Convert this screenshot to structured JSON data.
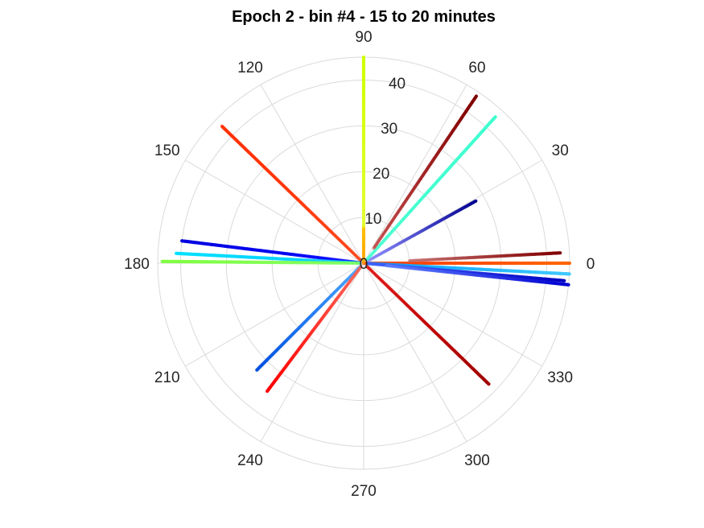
{
  "chart_data": {
    "type": "scatter",
    "coordinate_system": "polar",
    "title": "Epoch 2 - bin #4 - 15 to 20 minutes",
    "theta_unit": "degrees",
    "theta_ticks": [
      0,
      30,
      60,
      90,
      120,
      150,
      180,
      210,
      240,
      270,
      300,
      330
    ],
    "theta_tick_labels": [
      "0",
      "30",
      "60",
      "90",
      "120",
      "150",
      "180",
      "210",
      "240",
      "270",
      "300",
      "330"
    ],
    "r_ticks": [
      0,
      10,
      20,
      30,
      40
    ],
    "r_tick_labels": [
      "0",
      "10",
      "20",
      "30",
      "40"
    ],
    "r_lim": [
      0,
      45
    ],
    "grid": true,
    "colormap": "jet",
    "series": [
      {
        "theta": 0,
        "r": [
          0,
          45
        ],
        "color_start": "#ff3000",
        "color_end": "#ff6600",
        "density": 1.0
      },
      {
        "theta": 3,
        "r": [
          10,
          43
        ],
        "color_start": "#c06060",
        "color_end": "#800000",
        "density": 0.75
      },
      {
        "theta": -3,
        "r": [
          1,
          45
        ],
        "color_start": "#00a0ff",
        "color_end": "#40c8ff",
        "density": 1.0
      },
      {
        "theta": -5,
        "r": [
          1,
          44
        ],
        "color_start": "#4060ff",
        "color_end": "#0000c0",
        "density": 1.0
      },
      {
        "theta": -6,
        "r": [
          5,
          45
        ],
        "color_start": "#6080ff",
        "color_end": "#0000d0",
        "density": 0.9
      },
      {
        "theta": 29,
        "r": [
          1,
          28
        ],
        "color_start": "#8080ff",
        "color_end": "#000090",
        "density": 0.7
      },
      {
        "theta": 48,
        "r": [
          1,
          43
        ],
        "color_start": "#40ffd0",
        "color_end": "#40ffd0",
        "density": 0.9
      },
      {
        "theta": 56,
        "r": [
          4,
          44
        ],
        "color_start": "#c04040",
        "color_end": "#800000",
        "density": 0.85
      },
      {
        "theta": 90,
        "r": [
          0,
          8
        ],
        "color_start": "#ffa000",
        "color_end": "#ffc000",
        "density": 1.0
      },
      {
        "theta": 90,
        "r": [
          8,
          45
        ],
        "color_start": "#e0ff20",
        "color_end": "#d0ff00",
        "density": 1.0
      },
      {
        "theta": 136,
        "r": [
          1,
          43
        ],
        "color_start": "#ff3000",
        "color_end": "#ff3000",
        "density": 0.75
      },
      {
        "theta": 173,
        "r": [
          1,
          40
        ],
        "color_start": "#0000ff",
        "color_end": "#0000e0",
        "density": 0.9
      },
      {
        "theta": 177,
        "r": [
          1,
          41
        ],
        "color_start": "#00c8ff",
        "color_end": "#00e0ff",
        "density": 0.9
      },
      {
        "theta": 179.5,
        "r": [
          1,
          44
        ],
        "color_start": "#80ff60",
        "color_end": "#80ff40",
        "density": 1.0
      },
      {
        "theta": 225,
        "r": [
          1,
          33
        ],
        "color_start": "#40a0ff",
        "color_end": "#0050e0",
        "density": 0.9
      },
      {
        "theta": 233,
        "r": [
          1,
          35
        ],
        "color_start": "#ff6050",
        "color_end": "#ff0000",
        "density": 0.95
      },
      {
        "theta": 316,
        "r": [
          1,
          38
        ],
        "color_start": "#e00000",
        "color_end": "#a00000",
        "density": 0.8
      }
    ]
  }
}
